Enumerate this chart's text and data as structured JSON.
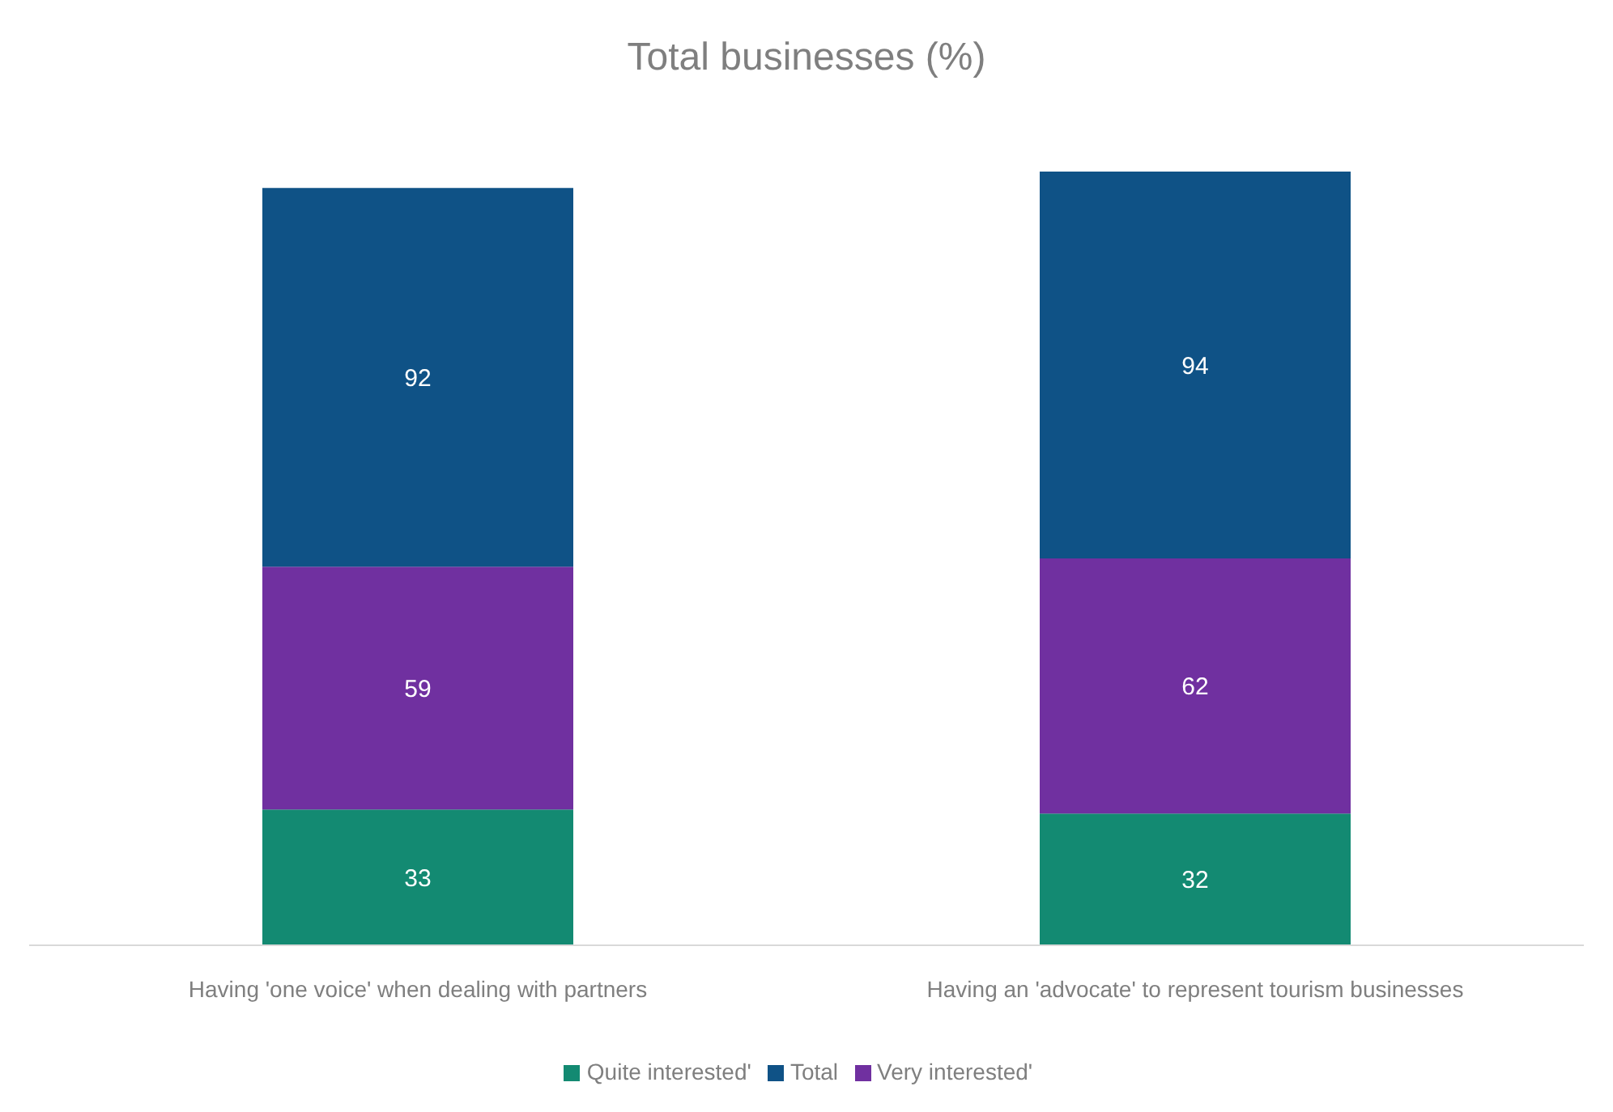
{
  "chart_data": {
    "type": "bar",
    "title": "Total businesses (%)",
    "stacked": true,
    "data_labels": true,
    "legend": "bottom",
    "grid": false,
    "categories": [
      "Having 'one voice' when dealing with partners",
      "Having an 'advocate' to represent tourism businesses"
    ],
    "series": [
      {
        "name": "Quite interested'",
        "color": "#138a72",
        "values": [
          33,
          32
        ]
      },
      {
        "name": "Very interested'",
        "color": "#7030a0",
        "values": [
          59,
          62
        ]
      },
      {
        "name": "Total",
        "color": "#0f5286",
        "values": [
          92,
          94
        ]
      }
    ]
  }
}
